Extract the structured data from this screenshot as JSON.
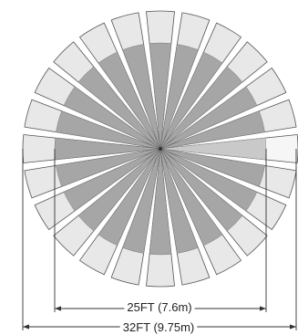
{
  "sectors": {
    "count": 24,
    "highlighted_index": 0,
    "outer_fill": "#e8e8e8",
    "inner_fill": "#a6a6a6",
    "highlight_outer_fill": "#f6f6f6",
    "highlight_inner_fill": "#c9c9c9",
    "stroke": "#555555"
  },
  "dimensions": {
    "inner": {
      "label": "25FT (7.6m)"
    },
    "outer": {
      "label": "32FT (9.75m)"
    },
    "line_color": "#333333"
  }
}
